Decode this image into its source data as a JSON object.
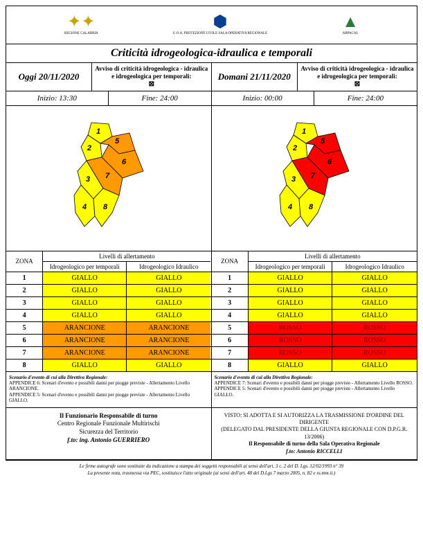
{
  "logos": {
    "l1_sub": "REGIONE CALABRIA",
    "l2_sub": "U.O.A. PROTEZIONE CIVILE\nSALA OPERATIVA REGIONALE",
    "l3_sub": "ARPACAL"
  },
  "title": "Criticità idrogeologica-idraulica e temporali",
  "columns": [
    {
      "date_label": "Oggi 20/11/2020",
      "notice": "Avviso di criticità idrogeologica - idraulica e idrogeologica per temporali:",
      "start": "Inizio: 13:30",
      "end": "Fine: 24:00",
      "levels_title": "Livelli di allertamento",
      "zona_label": "ZONA",
      "col1_label": "Idrogeologico per temporali",
      "col2_label": "Idrogeologico Idraulico",
      "zones": [
        {
          "z": "1",
          "a": "GIALLO",
          "ac": "giallo",
          "b": "GIALLO",
          "bc": "giallo"
        },
        {
          "z": "2",
          "a": "GIALLO",
          "ac": "giallo",
          "b": "GIALLO",
          "bc": "giallo"
        },
        {
          "z": "3",
          "a": "GIALLO",
          "ac": "giallo",
          "b": "GIALLO",
          "bc": "giallo"
        },
        {
          "z": "4",
          "a": "GIALLO",
          "ac": "giallo",
          "b": "GIALLO",
          "bc": "giallo"
        },
        {
          "z": "5",
          "a": "ARANCIONE",
          "ac": "arancione",
          "b": "ARANCIONE",
          "bc": "arancione"
        },
        {
          "z": "6",
          "a": "ARANCIONE",
          "ac": "arancione",
          "b": "ARANCIONE",
          "bc": "arancione"
        },
        {
          "z": "7",
          "a": "ARANCIONE",
          "ac": "arancione",
          "b": "ARANCIONE",
          "bc": "arancione"
        },
        {
          "z": "8",
          "a": "GIALLO",
          "ac": "giallo",
          "b": "GIALLO",
          "bc": "giallo"
        }
      ],
      "map_colors": {
        "1": "#ffff00",
        "2": "#ffff00",
        "3": "#ffff00",
        "4": "#ffff00",
        "5": "#ff9900",
        "6": "#ff9900",
        "7": "#ff9900",
        "8": "#ffff00"
      },
      "scenario_title": "Scenario d'evento di cui alla Direttiva Regionale:",
      "scenario_text": "APPENDICE 6: Scenari d'evento e possibili danni per piogge previste - Allertamento Livello ARANCIONE.\nAPPENDICE 5: Scenari d'evento e possibili danni per piogge previste - Allertamento Livello GIALLO."
    },
    {
      "date_label": "Domani 21/11/2020",
      "notice": "Avviso di criticità idrogeologica - idraulica e idrogeologica per temporali:",
      "start": "Inizio: 00:00",
      "end": "Fine: 24:00",
      "levels_title": "Livelli di allertamento",
      "zona_label": "ZONA",
      "col1_label": "Idrogeologico per temporali",
      "col2_label": "Idrogeologico Idraulico",
      "zones": [
        {
          "z": "1",
          "a": "GIALLO",
          "ac": "giallo",
          "b": "GIALLO",
          "bc": "giallo"
        },
        {
          "z": "2",
          "a": "GIALLO",
          "ac": "giallo",
          "b": "GIALLO",
          "bc": "giallo"
        },
        {
          "z": "3",
          "a": "GIALLO",
          "ac": "giallo",
          "b": "GIALLO",
          "bc": "giallo"
        },
        {
          "z": "4",
          "a": "GIALLO",
          "ac": "giallo",
          "b": "GIALLO",
          "bc": "giallo"
        },
        {
          "z": "5",
          "a": "ROSSO",
          "ac": "rosso",
          "b": "ROSSO",
          "bc": "rosso"
        },
        {
          "z": "6",
          "a": "ROSSO",
          "ac": "rosso",
          "b": "ROSSO",
          "bc": "rosso"
        },
        {
          "z": "7",
          "a": "ROSSO",
          "ac": "rosso",
          "b": "ROSSO",
          "bc": "rosso"
        },
        {
          "z": "8",
          "a": "GIALLO",
          "ac": "giallo",
          "b": "GIALLO",
          "bc": "giallo"
        }
      ],
      "map_colors": {
        "1": "#ffff00",
        "2": "#ffff00",
        "3": "#ffff00",
        "4": "#ffff00",
        "5": "#ff0000",
        "6": "#ff0000",
        "7": "#ff0000",
        "8": "#ffff00"
      },
      "scenario_title": "Scenario d'evento di cui alla Direttiva Regionale:",
      "scenario_text": "APPENDICE 7: Scenari d'evento e possibili danni per piogge previste - Allertamento Livello ROSSO.\nAPPENDICE 5: Scenari d'evento e possibili danni per piogge previste - Allertamento Livello GIALLO."
    }
  ],
  "footer": {
    "left": "<b>Il Funzionario Responsabile di turno</b><br>Centro Regionale Funzionale Multirischi<br>Sicurezza del Territorio<br><i><b>f.to: ing. Antonio GUERRIERO</b></i>",
    "right": "VISTO: SI ADOTTA E SI AUTORIZZA LA TRASMISSIONE D'ORDINE DEL DIRIGENTE<br>(DELEGATO DAL PRESIDENTE DELLA GIUNTA REGIONALE CON D.P.G.R. 13/2006)<br><b>Il Responsabile di turno della Sala Operativa Regionale</b><br><i><b>f.to: Antonio RICCELLI</b></i>"
  },
  "footnotes": {
    "l1": "Le firme autografe sono sostituite da indicazione a stampa dei soggetti responsabili ai sensi dell'art. 3 c. 2 del D. Lgs. 12/02/1993 n° 39",
    "l2": "La presente nota, trasmessa via PEC, sostituisce l'atto originale (ai sensi dell'art. 48 del D.Lgs 7 marzo 2005, n. 82 e ss.mm.ii.)"
  },
  "colors": {
    "giallo": "#ffff00",
    "arancione": "#ff9900",
    "rosso": "#ff0000"
  }
}
